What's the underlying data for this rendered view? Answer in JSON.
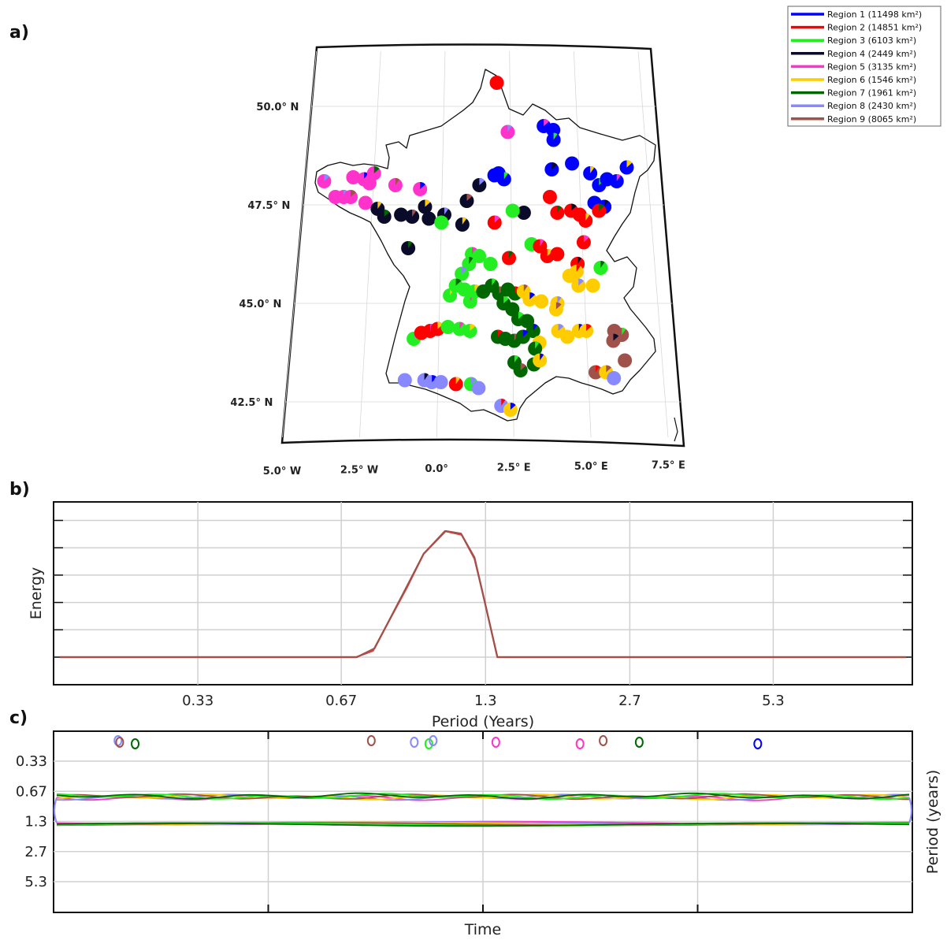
{
  "panels": {
    "a": "a)",
    "b": "b)",
    "c": "c)"
  },
  "chart_data": [
    {
      "type": "scatter",
      "panel": "a)",
      "description_kind": "map of stations with pie-chart markers",
      "lon_ticks": [
        "5.0° W",
        "2.5° W",
        "0.0°",
        "2.5° E",
        "5.0° E",
        "7.5° E"
      ],
      "lat_ticks": [
        "50.0° N",
        "47.5° N",
        "45.0° N",
        "42.5° N"
      ],
      "lon_range": [
        -5,
        8
      ],
      "lat_range": [
        41.5,
        51.5
      ],
      "legend": {
        "placement": "top-right",
        "entries": [
          {
            "label": "Region 1 (11498 km²)",
            "color": "#0000ff"
          },
          {
            "label": "Region 2 (14851 km²)",
            "color": "#ff0000"
          },
          {
            "label": "Region 3 (6103 km²)",
            "color": "#22ee22"
          },
          {
            "label": "Region 4 (2449 km²)",
            "color": "#0a0a2a"
          },
          {
            "label": "Region 5 (3135 km²)",
            "color": "#ff33cc"
          },
          {
            "label": "Region 6 (1546 km²)",
            "color": "#ffcc00"
          },
          {
            "label": "Region 7 (1961 km²)",
            "color": "#006600"
          },
          {
            "label": "Region 8 (2430 km²)",
            "color": "#8888ff"
          },
          {
            "label": "Region 9 (8065 km²)",
            "color": "#a0524a"
          }
        ]
      },
      "stations": [
        {
          "lon": 2.0,
          "lat": 50.6,
          "region": 2
        },
        {
          "lon": 2.4,
          "lat": 49.35,
          "region": 5
        },
        {
          "lon": 3.75,
          "lat": 49.5,
          "region": 1
        },
        {
          "lon": 4.1,
          "lat": 49.4,
          "region": 1
        },
        {
          "lon": 4.1,
          "lat": 49.15,
          "region": 1
        },
        {
          "lon": 4.0,
          "lat": 48.4,
          "region": 1
        },
        {
          "lon": 4.75,
          "lat": 48.55,
          "region": 1
        },
        {
          "lon": 5.4,
          "lat": 48.3,
          "region": 1
        },
        {
          "lon": 5.7,
          "lat": 48.0,
          "region": 1
        },
        {
          "lon": 6.0,
          "lat": 48.15,
          "region": 1
        },
        {
          "lon": 6.35,
          "lat": 48.1,
          "region": 1
        },
        {
          "lon": 6.75,
          "lat": 48.45,
          "region": 1
        },
        {
          "lon": 5.5,
          "lat": 47.55,
          "region": 1
        },
        {
          "lon": 5.85,
          "lat": 47.45,
          "region": 1
        },
        {
          "lon": 1.9,
          "lat": 48.25,
          "region": 1
        },
        {
          "lon": 2.05,
          "lat": 48.3,
          "region": 1
        },
        {
          "lon": 2.25,
          "lat": 48.15,
          "region": 1
        },
        {
          "lon": -4.3,
          "lat": 48.1,
          "region": 5
        },
        {
          "lon": -3.25,
          "lat": 48.2,
          "region": 5
        },
        {
          "lon": -2.85,
          "lat": 48.15,
          "region": 5
        },
        {
          "lon": -2.5,
          "lat": 48.3,
          "region": 5
        },
        {
          "lon": -2.65,
          "lat": 48.05,
          "region": 5
        },
        {
          "lon": -1.7,
          "lat": 48.0,
          "region": 5
        },
        {
          "lon": -0.8,
          "lat": 47.9,
          "region": 5
        },
        {
          "lon": -3.85,
          "lat": 47.7,
          "region": 5
        },
        {
          "lon": -3.55,
          "lat": 47.7,
          "region": 5
        },
        {
          "lon": -3.3,
          "lat": 47.7,
          "region": 5
        },
        {
          "lon": -2.75,
          "lat": 47.55,
          "region": 5
        },
        {
          "lon": -2.3,
          "lat": 47.4,
          "region": 4
        },
        {
          "lon": -2.05,
          "lat": 47.2,
          "region": 4
        },
        {
          "lon": -1.45,
          "lat": 47.25,
          "region": 4
        },
        {
          "lon": -1.05,
          "lat": 47.2,
          "region": 4
        },
        {
          "lon": -0.6,
          "lat": 47.45,
          "region": 4
        },
        {
          "lon": -0.45,
          "lat": 47.15,
          "region": 4
        },
        {
          "lon": 0.1,
          "lat": 47.25,
          "region": 4
        },
        {
          "lon": 0.9,
          "lat": 47.6,
          "region": 4
        },
        {
          "lon": 2.95,
          "lat": 47.3,
          "region": 4
        },
        {
          "lon": -1.15,
          "lat": 46.4,
          "region": 4
        },
        {
          "lon": 1.35,
          "lat": 48.0,
          "region": 4
        },
        {
          "lon": 0.0,
          "lat": 47.05,
          "region": 3
        },
        {
          "lon": 0.75,
          "lat": 47.0,
          "region": 4
        },
        {
          "lon": 1.9,
          "lat": 47.05,
          "region": 2
        },
        {
          "lon": 3.9,
          "lat": 47.7,
          "region": 2
        },
        {
          "lon": 4.15,
          "lat": 47.3,
          "region": 2
        },
        {
          "lon": 4.65,
          "lat": 47.35,
          "region": 2
        },
        {
          "lon": 4.95,
          "lat": 47.25,
          "region": 2
        },
        {
          "lon": 5.15,
          "lat": 47.1,
          "region": 2
        },
        {
          "lon": 5.65,
          "lat": 47.35,
          "region": 2
        },
        {
          "lon": 3.2,
          "lat": 46.5,
          "region": 3
        },
        {
          "lon": 3.5,
          "lat": 46.45,
          "region": 2
        },
        {
          "lon": 3.75,
          "lat": 46.2,
          "region": 2
        },
        {
          "lon": 4.1,
          "lat": 46.25,
          "region": 2
        },
        {
          "lon": 4.8,
          "lat": 46.0,
          "region": 2
        },
        {
          "lon": 5.05,
          "lat": 46.55,
          "region": 2
        },
        {
          "lon": 2.55,
          "lat": 47.35,
          "region": 3
        },
        {
          "lon": 2.4,
          "lat": 46.15,
          "region": 2
        },
        {
          "lon": 1.1,
          "lat": 46.25,
          "region": 3
        },
        {
          "lon": 1.35,
          "lat": 46.2,
          "region": 3
        },
        {
          "lon": 1.0,
          "lat": 46.0,
          "region": 3
        },
        {
          "lon": 0.75,
          "lat": 45.75,
          "region": 3
        },
        {
          "lon": 1.75,
          "lat": 46.0,
          "region": 3
        },
        {
          "lon": 0.35,
          "lat": 45.2,
          "region": 3
        },
        {
          "lon": 0.55,
          "lat": 45.45,
          "region": 3
        },
        {
          "lon": 0.85,
          "lat": 45.35,
          "region": 3
        },
        {
          "lon": 1.05,
          "lat": 45.05,
          "region": 3
        },
        {
          "lon": 1.2,
          "lat": 45.3,
          "region": 3
        },
        {
          "lon": 1.5,
          "lat": 45.3,
          "region": 7
        },
        {
          "lon": 1.8,
          "lat": 45.45,
          "region": 7
        },
        {
          "lon": 2.05,
          "lat": 45.25,
          "region": 7
        },
        {
          "lon": 2.35,
          "lat": 45.35,
          "region": 7
        },
        {
          "lon": 2.6,
          "lat": 45.25,
          "region": 7
        },
        {
          "lon": 2.2,
          "lat": 45.0,
          "region": 7
        },
        {
          "lon": 2.5,
          "lat": 44.85,
          "region": 7
        },
        {
          "lon": 2.9,
          "lat": 45.3,
          "region": 6
        },
        {
          "lon": 3.1,
          "lat": 45.1,
          "region": 6
        },
        {
          "lon": 3.5,
          "lat": 45.05,
          "region": 6
        },
        {
          "lon": 4.05,
          "lat": 45.0,
          "region": 6
        },
        {
          "lon": 4.0,
          "lat": 44.85,
          "region": 6
        },
        {
          "lon": 4.5,
          "lat": 45.7,
          "region": 6
        },
        {
          "lon": 4.75,
          "lat": 45.8,
          "region": 6
        },
        {
          "lon": 4.8,
          "lat": 45.45,
          "region": 6
        },
        {
          "lon": 5.3,
          "lat": 45.45,
          "region": 6
        },
        {
          "lon": 5.6,
          "lat": 45.9,
          "region": 3
        },
        {
          "lon": 2.7,
          "lat": 44.6,
          "region": 7
        },
        {
          "lon": 3.0,
          "lat": 44.55,
          "region": 7
        },
        {
          "lon": 3.2,
          "lat": 44.3,
          "region": 7
        },
        {
          "lon": 2.0,
          "lat": 44.15,
          "region": 7
        },
        {
          "lon": 2.25,
          "lat": 44.1,
          "region": 7
        },
        {
          "lon": 2.55,
          "lat": 44.05,
          "region": 7
        },
        {
          "lon": 2.85,
          "lat": 44.15,
          "region": 7
        },
        {
          "lon": 3.4,
          "lat": 44.0,
          "region": 6
        },
        {
          "lon": 3.25,
          "lat": 43.85,
          "region": 7
        },
        {
          "lon": 4.05,
          "lat": 44.3,
          "region": 6
        },
        {
          "lon": 4.35,
          "lat": 44.15,
          "region": 6
        },
        {
          "lon": 4.75,
          "lat": 44.3,
          "region": 6
        },
        {
          "lon": 5.0,
          "lat": 44.3,
          "region": 6
        },
        {
          "lon": 5.95,
          "lat": 44.3,
          "region": 9
        },
        {
          "lon": 6.2,
          "lat": 44.2,
          "region": 9
        },
        {
          "lon": 5.9,
          "lat": 44.05,
          "region": 9
        },
        {
          "lon": 6.25,
          "lat": 43.55,
          "region": 9
        },
        {
          "lon": 5.25,
          "lat": 43.25,
          "region": 9
        },
        {
          "lon": 5.6,
          "lat": 43.25,
          "region": 6
        },
        {
          "lon": 5.85,
          "lat": 43.1,
          "region": 8
        },
        {
          "lon": 2.55,
          "lat": 43.5,
          "region": 7
        },
        {
          "lon": 2.75,
          "lat": 43.3,
          "region": 7
        },
        {
          "lon": 3.2,
          "lat": 43.45,
          "region": 7
        },
        {
          "lon": 3.4,
          "lat": 43.55,
          "region": 6
        },
        {
          "lon": -0.85,
          "lat": 44.1,
          "region": 3
        },
        {
          "lon": -0.6,
          "lat": 44.25,
          "region": 2
        },
        {
          "lon": -0.3,
          "lat": 44.3,
          "region": 2
        },
        {
          "lon": -0.05,
          "lat": 44.35,
          "region": 2
        },
        {
          "lon": 0.3,
          "lat": 44.4,
          "region": 3
        },
        {
          "lon": 0.7,
          "lat": 44.35,
          "region": 3
        },
        {
          "lon": 1.05,
          "lat": 44.3,
          "region": 3
        },
        {
          "lon": -1.1,
          "lat": 43.05,
          "region": 8
        },
        {
          "lon": -0.45,
          "lat": 43.05,
          "region": 8
        },
        {
          "lon": -0.2,
          "lat": 43.0,
          "region": 8
        },
        {
          "lon": 0.1,
          "lat": 43.0,
          "region": 8
        },
        {
          "lon": 0.6,
          "lat": 42.95,
          "region": 2
        },
        {
          "lon": 1.1,
          "lat": 42.95,
          "region": 3
        },
        {
          "lon": 1.35,
          "lat": 42.85,
          "region": 8
        },
        {
          "lon": 2.1,
          "lat": 42.4,
          "region": 8
        },
        {
          "lon": 2.4,
          "lat": 42.3,
          "region": 6
        }
      ]
    },
    {
      "type": "line",
      "panel": "b)",
      "xlabel": "Period (Years)",
      "ylabel": "Energy",
      "x_tick_labels": [
        "0.33",
        "0.67",
        "1.3",
        "2.7",
        "5.3"
      ],
      "x_tick_frac": [
        0.168,
        0.335,
        0.503,
        0.671,
        0.838
      ],
      "grid": true,
      "y_grid_count": 6,
      "series": [
        {
          "color": "#e04040",
          "x_frac": [
            0,
            0.35,
            0.37,
            0.41,
            0.43,
            0.455,
            0.475,
            0.49,
            0.5,
            0.517,
            1
          ],
          "y": [
            0,
            0,
            0.05,
            0.55,
            0.82,
            1.0,
            0.97,
            0.78,
            0.5,
            0,
            0
          ]
        },
        {
          "color": "#a0524a",
          "x_frac": [
            0,
            0.351,
            0.372,
            0.41,
            0.43,
            0.456,
            0.474,
            0.49,
            0.5,
            0.517,
            1
          ],
          "y": [
            0,
            0,
            0.07,
            0.56,
            0.82,
            1.0,
            0.98,
            0.79,
            0.5,
            0,
            0
          ]
        }
      ]
    },
    {
      "type": "line",
      "panel": "c)",
      "xlabel": "Time",
      "ylabel": "Period (years)",
      "y_tick_labels": [
        "0.33",
        "0.67",
        "1.3",
        "2.7",
        "5.3"
      ],
      "y_tick_frac": [
        0.2,
        0.4,
        0.6,
        0.8,
        1.0
      ],
      "grid": true,
      "band_period_range": [
        "0.67",
        "1.3"
      ],
      "ridge_colors": [
        "#ff33cc",
        "#8888ff",
        "#ffcc00",
        "#a0524a",
        "#22ee22",
        "#006600"
      ],
      "small_contours": [
        {
          "x_frac": 0.075,
          "color": "#8888ff"
        },
        {
          "x_frac": 0.077,
          "color": "#a0524a"
        },
        {
          "x_frac": 0.095,
          "color": "#006600"
        },
        {
          "x_frac": 0.37,
          "color": "#a0524a"
        },
        {
          "x_frac": 0.42,
          "color": "#8888ff"
        },
        {
          "x_frac": 0.437,
          "color": "#22ee22"
        },
        {
          "x_frac": 0.442,
          "color": "#8888ff"
        },
        {
          "x_frac": 0.515,
          "color": "#ff33cc"
        },
        {
          "x_frac": 0.613,
          "color": "#ff33cc"
        },
        {
          "x_frac": 0.64,
          "color": "#a0524a"
        },
        {
          "x_frac": 0.682,
          "color": "#006600"
        },
        {
          "x_frac": 0.82,
          "color": "#0000ff"
        }
      ]
    }
  ]
}
